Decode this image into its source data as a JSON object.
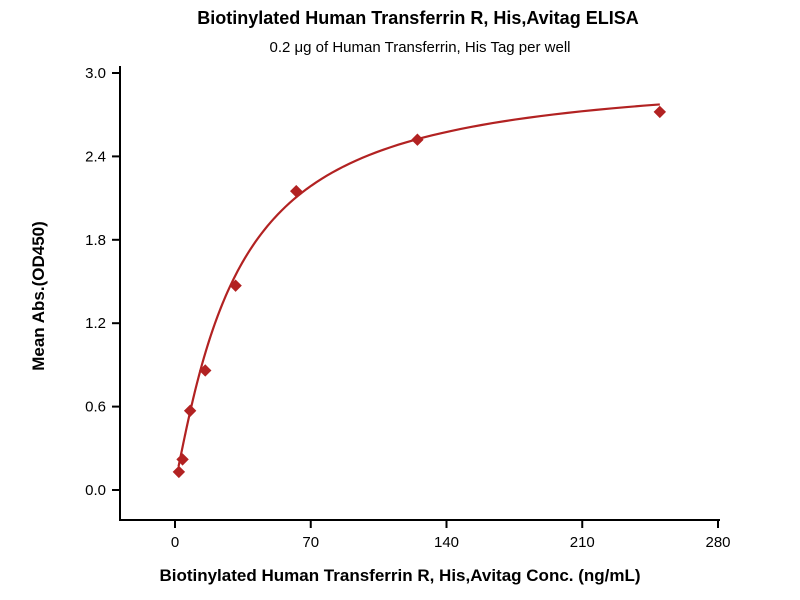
{
  "chart_data": {
    "type": "scatter",
    "title": "Biotinylated Human Transferrin R, His,Avitag ELISA",
    "subtitle": "0.2 μg of Human Transferrin, His Tag per well",
    "xlabel": "Biotinylated Human Transferrin R, His,Avitag Conc. (ng/mL)",
    "ylabel": "Mean Abs.(OD450)",
    "xlim": [
      0,
      280
    ],
    "ylim": [
      0,
      3.0
    ],
    "xticks": [
      0,
      70,
      140,
      210,
      280
    ],
    "xtick_labels": [
      "0",
      "70",
      "140",
      "210",
      "280"
    ],
    "yticks": [
      0.0,
      0.6,
      1.2,
      1.8,
      2.4,
      3.0
    ],
    "ytick_labels": [
      "0.0",
      "0.6",
      "1.2",
      "1.8",
      "2.4",
      "3.0"
    ],
    "grid": false,
    "legend": "none",
    "series_color": "#B22222",
    "marker": "diamond",
    "points": [
      {
        "x": 2.0,
        "y": 0.13
      },
      {
        "x": 3.9,
        "y": 0.22
      },
      {
        "x": 7.8,
        "y": 0.57
      },
      {
        "x": 15.6,
        "y": 0.86
      },
      {
        "x": 31.25,
        "y": 1.47
      },
      {
        "x": 62.5,
        "y": 2.15
      },
      {
        "x": 125,
        "y": 2.52
      },
      {
        "x": 250,
        "y": 2.72
      }
    ],
    "fit_curve": {
      "type": "4PL",
      "a": 0.06,
      "b": 1.15,
      "c": 31,
      "d": 3.02,
      "x_start": 1.8,
      "x_end": 250
    }
  }
}
